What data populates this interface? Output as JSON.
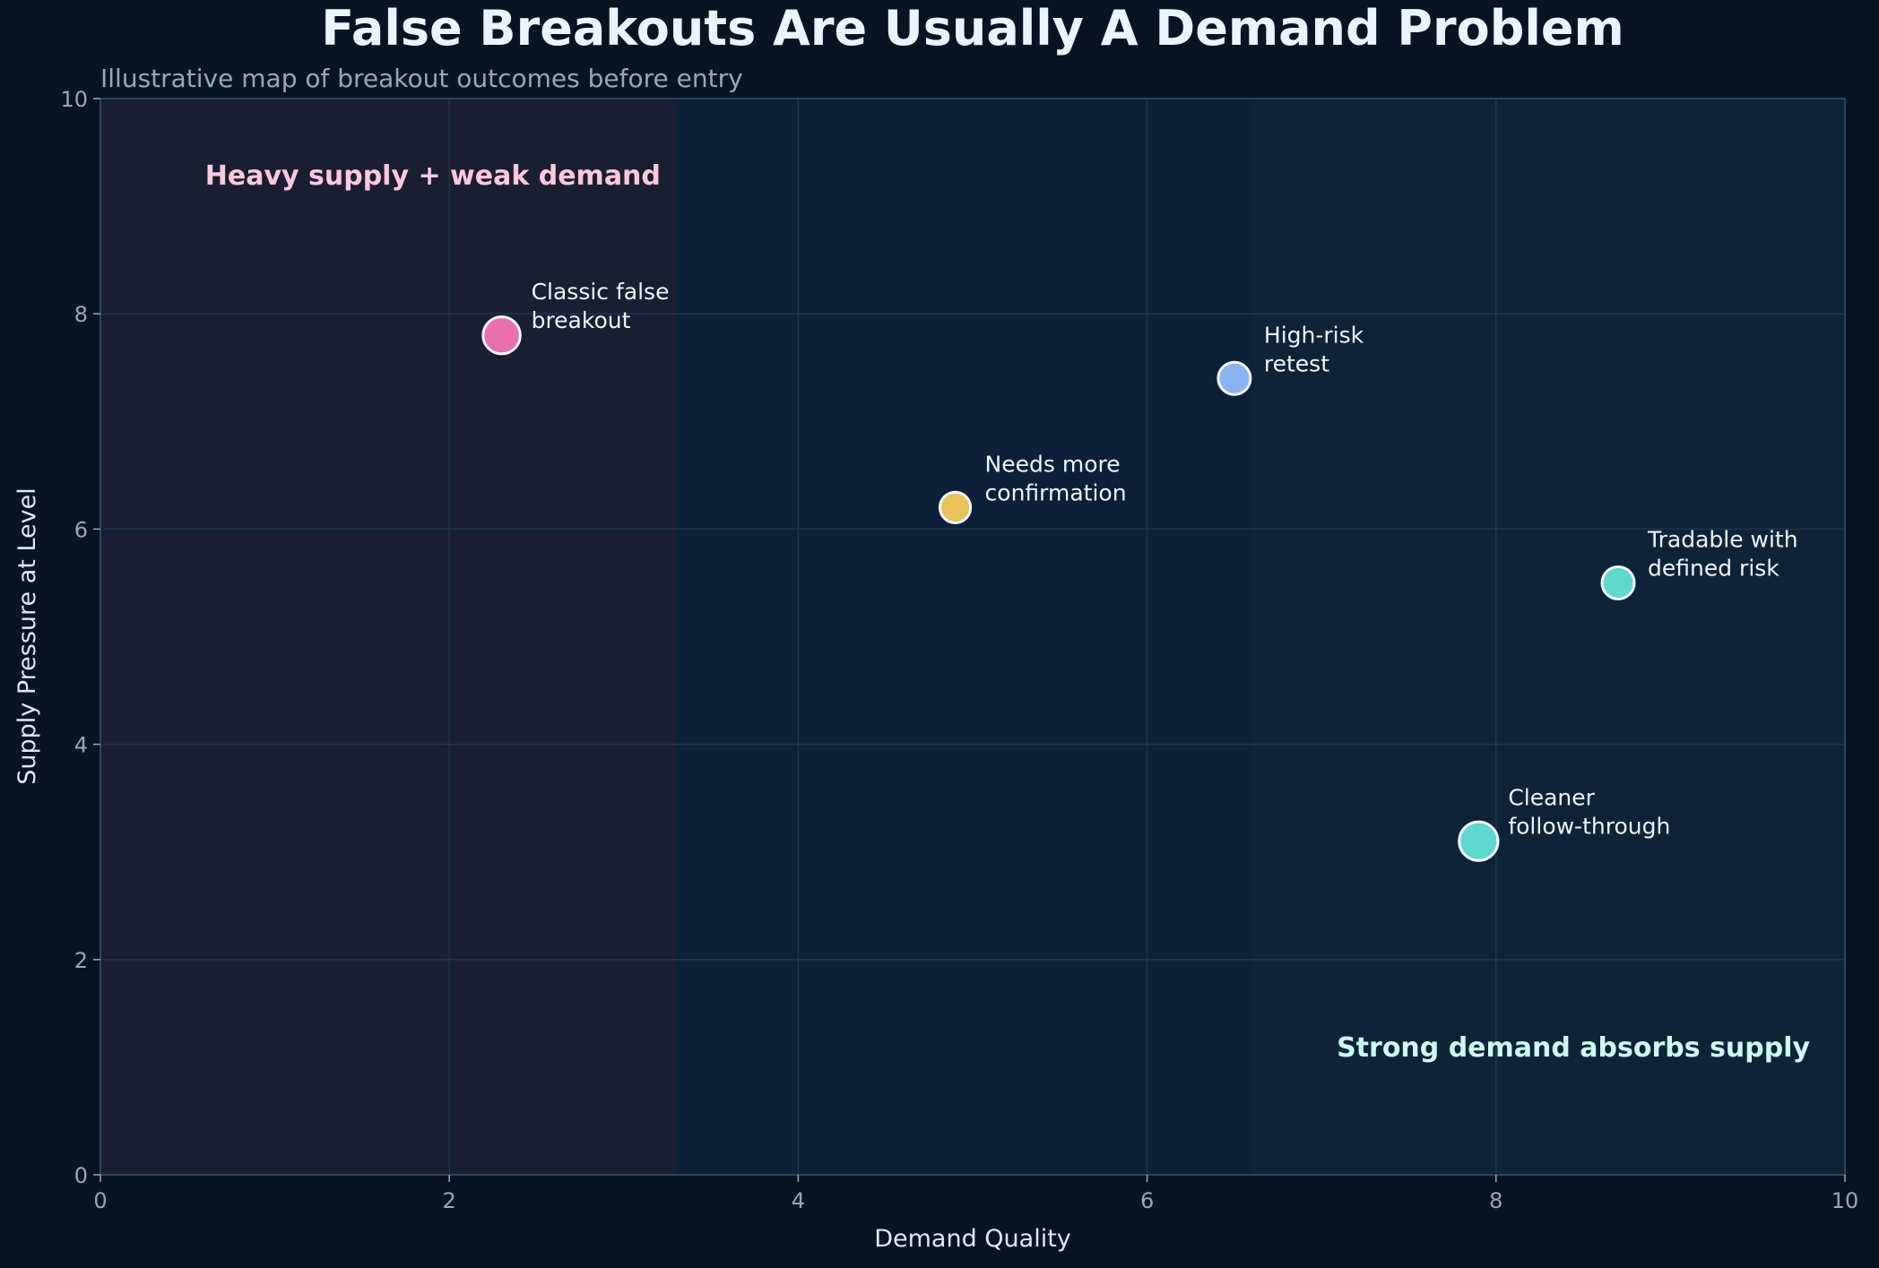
{
  "chart_data": {
    "type": "scatter",
    "title": "False Breakouts Are Usually A Demand Problem",
    "subtitle": "Illustrative map of breakout outcomes before entry",
    "xlabel": "Demand Quality",
    "ylabel": "Supply Pressure at Level",
    "xlim": [
      0,
      10
    ],
    "ylim": [
      0,
      10
    ],
    "xticks": [
      "0",
      "2",
      "4",
      "6",
      "8",
      "10"
    ],
    "yticks": [
      "0",
      "2",
      "4",
      "6",
      "8",
      "10"
    ],
    "grid": true,
    "zones": [
      {
        "x_from": 0,
        "x_to": 3.3,
        "color": "#191e33"
      },
      {
        "x_from": 3.3,
        "x_to": 6.6,
        "color": "#0c2139"
      },
      {
        "x_from": 6.6,
        "x_to": 10,
        "color": "#0f2338"
      }
    ],
    "zone_labels": [
      {
        "text": "Heavy supply + weak demand",
        "x": 0.6,
        "y": 9.2,
        "color": "#ffc8dc"
      },
      {
        "text": "Strong demand absorbs supply",
        "x": 9.8,
        "y": 1.1,
        "color": "#ccfaf2"
      }
    ],
    "points": [
      {
        "x": 2.3,
        "y": 7.8,
        "label": [
          "Classic false",
          "breakout"
        ],
        "color": "#e86fae",
        "size": 1.15
      },
      {
        "x": 4.9,
        "y": 6.2,
        "label": [
          "Needs more",
          "confirmation"
        ],
        "color": "#e8c35a",
        "size": 0.95
      },
      {
        "x": 6.5,
        "y": 7.4,
        "label": [
          "High-risk",
          "retest"
        ],
        "color": "#8ab4f0",
        "size": 1.0
      },
      {
        "x": 8.7,
        "y": 5.5,
        "label": [
          "Tradable with",
          "defined risk"
        ],
        "color": "#5fd8d0",
        "size": 1.0
      },
      {
        "x": 7.9,
        "y": 3.1,
        "label": [
          "Cleaner",
          "follow-through"
        ],
        "color": "#5fd8d0",
        "size": 1.2
      }
    ]
  }
}
